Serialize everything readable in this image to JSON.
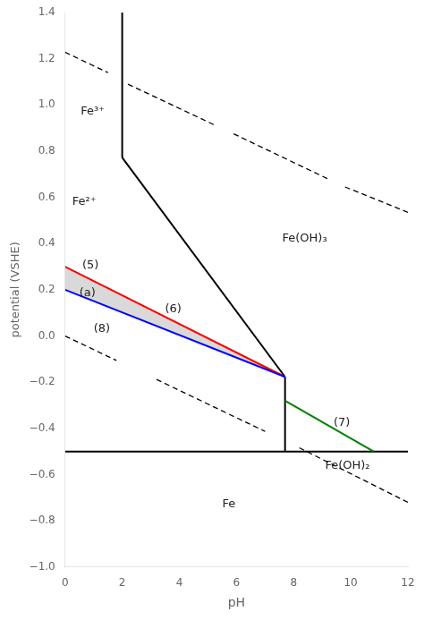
{
  "chart_data": {
    "type": "line",
    "x_label": "pH",
    "y_label": "potential (VSHE)",
    "xlim": [
      0,
      12
    ],
    "ylim": [
      -1.0,
      1.4
    ],
    "xticks": [
      0,
      2,
      4,
      6,
      8,
      10,
      12
    ],
    "yticks": [
      {
        "value": -1.0,
        "label": "−1.0"
      },
      {
        "value": -0.8,
        "label": "−0.8"
      },
      {
        "value": -0.6,
        "label": "−0.6"
      },
      {
        "value": -0.4,
        "label": "−0.4"
      },
      {
        "value": -0.2,
        "label": "−0.2"
      },
      {
        "value": 0.0,
        "label": "0.0"
      },
      0.2,
      0.4,
      0.6,
      0.8,
      {
        "value": 1.0,
        "label": "1.0"
      },
      1.2,
      1.4
    ],
    "grid": false,
    "series": [
      {
        "type": "area",
        "color": "#aaaaaa",
        "x": [
          0.0,
          0.0,
          7.7,
          7.7
        ],
        "values": [
          0.2,
          0.3,
          -0.177,
          -0.177
        ]
      },
      {
        "type": "line",
        "color": "black",
        "line_style": "solid",
        "x": [
          2.0,
          2.0
        ],
        "values": [
          0.772,
          1.4
        ]
      },
      {
        "type": "line",
        "color": "black",
        "line_style": "solid",
        "x": [
          2.0,
          7.7
        ],
        "values": [
          0.772,
          -0.177
        ]
      },
      {
        "type": "line",
        "color": "black",
        "line_style": "solid",
        "x": [
          7.7,
          7.7
        ],
        "values": [
          -0.177,
          -0.5
        ]
      },
      {
        "type": "line",
        "color": "black",
        "line_style": "solid",
        "x": [
          0.0,
          12.0
        ],
        "values": [
          -0.5,
          -0.5
        ]
      },
      {
        "type": "line",
        "color": "black",
        "line_style": "dashed",
        "x": [
          0.0,
          1.5
        ],
        "values": [
          1.228,
          1.14
        ]
      },
      {
        "type": "line",
        "color": "black",
        "line_style": "dashed",
        "x": [
          2.2,
          5.2
        ],
        "values": [
          1.09,
          0.915
        ]
      },
      {
        "type": "line",
        "color": "black",
        "line_style": "dashed",
        "x": [
          5.9,
          9.2
        ],
        "values": [
          0.875,
          0.68
        ]
      },
      {
        "type": "line",
        "color": "black",
        "line_style": "dashed",
        "x": [
          9.8,
          12.0
        ],
        "values": [
          0.645,
          0.535
        ]
      },
      {
        "type": "line",
        "color": "black",
        "line_style": "dashed",
        "x": [
          0.0,
          1.8
        ],
        "values": [
          0.0,
          -0.106
        ]
      },
      {
        "type": "line",
        "color": "black",
        "line_style": "dashed",
        "x": [
          3.2,
          7.0
        ],
        "values": [
          -0.188,
          -0.413
        ]
      },
      {
        "type": "line",
        "color": "black",
        "line_style": "dashed",
        "x": [
          8.2,
          12.0
        ],
        "values": [
          -0.484,
          -0.72
        ]
      },
      {
        "type": "line",
        "color": "red",
        "line_style": "solid",
        "x": [
          0.0,
          7.7
        ],
        "values": [
          0.3,
          -0.177
        ]
      },
      {
        "type": "line",
        "color": "blue",
        "line_style": "solid",
        "x": [
          0.0,
          7.7
        ],
        "values": [
          0.2,
          -0.177
        ]
      },
      {
        "type": "line",
        "color": "green",
        "line_style": "solid",
        "x": [
          7.7,
          10.8
        ],
        "values": [
          -0.28,
          -0.5
        ]
      }
    ],
    "annotations": [
      {
        "text": "Fe³⁺",
        "x": 0.55,
        "y": 0.97
      },
      {
        "text": "Fe²⁺",
        "x": 0.25,
        "y": 0.58
      },
      {
        "text": "Fe(OH)₃",
        "x": 7.6,
        "y": 0.42
      },
      {
        "text": "Fe(OH)₂",
        "x": 9.1,
        "y": -0.56
      },
      {
        "text": "Fe",
        "x": 5.5,
        "y": -0.73
      },
      {
        "text": "(5)",
        "x": 0.6,
        "y": 0.305
      },
      {
        "text": "(a)",
        "x": 0.5,
        "y": 0.185
      },
      {
        "text": "(6)",
        "x": 3.5,
        "y": 0.115
      },
      {
        "text": "(8)",
        "x": 1.0,
        "y": 0.03
      },
      {
        "text": "(7)",
        "x": 9.4,
        "y": -0.375
      }
    ]
  }
}
